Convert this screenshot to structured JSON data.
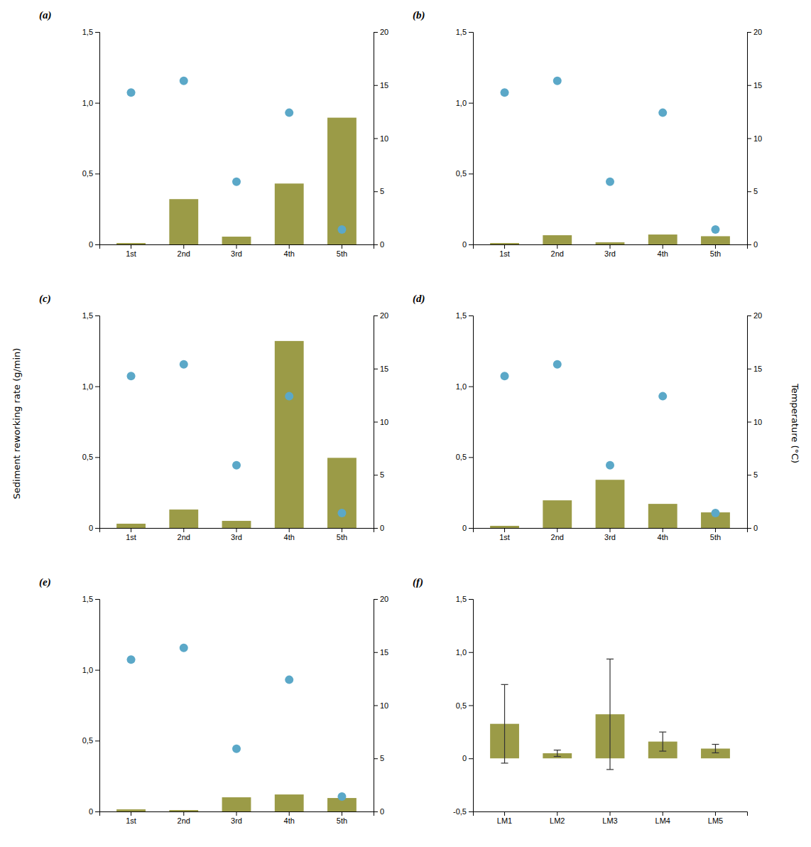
{
  "chart_data": [
    {
      "type": "bar",
      "title": "(a)",
      "categories": [
        "1st",
        "2nd",
        "3rd",
        "4th",
        "5th"
      ],
      "series": [
        {
          "type": "bar",
          "color": "#9B9B47",
          "values": [
            0.01,
            0.32,
            0.055,
            0.43,
            0.895
          ]
        },
        {
          "type": "scatter",
          "color": "#5BA8C8",
          "axis": "y2",
          "values": [
            14.3,
            15.4,
            5.9,
            12.4,
            1.4
          ]
        }
      ],
      "ylim": [
        0,
        1.5
      ],
      "yticks": [
        0,
        {
          "value": 0.5,
          "label": "0,5"
        },
        {
          "value": 1.0,
          "label": "1,0"
        },
        {
          "value": 1.5,
          "label": "1,5"
        }
      ],
      "y2lim": [
        0,
        20
      ],
      "y2ticks": [
        0,
        5,
        10,
        15,
        20
      ],
      "ylabel": "Sediment reworking rate (g/min)",
      "y2label": "Temperature (°C)"
    },
    {
      "type": "bar",
      "title": "(b)",
      "categories": [
        "1st",
        "2nd",
        "3rd",
        "4th",
        "5th"
      ],
      "series": [
        {
          "type": "bar",
          "color": "#9B9B47",
          "values": [
            0.01,
            0.065,
            0.015,
            0.07,
            0.058
          ]
        },
        {
          "type": "scatter",
          "color": "#5BA8C8",
          "axis": "y2",
          "values": [
            14.3,
            15.4,
            5.9,
            12.4,
            1.4
          ]
        }
      ],
      "ylim": [
        0,
        1.5
      ],
      "yticks": [
        0,
        {
          "value": 0.5,
          "label": "0,5"
        },
        {
          "value": 1.0,
          "label": "1,0"
        },
        {
          "value": 1.5,
          "label": "1,5"
        }
      ],
      "y2lim": [
        0,
        20
      ],
      "y2ticks": [
        0,
        5,
        10,
        15,
        20
      ]
    },
    {
      "type": "bar",
      "title": "(c)",
      "categories": [
        "1st",
        "2nd",
        "3rd",
        "4th",
        "5th"
      ],
      "series": [
        {
          "type": "bar",
          "color": "#9B9B47",
          "values": [
            0.03,
            0.13,
            0.05,
            1.32,
            0.495
          ]
        },
        {
          "type": "scatter",
          "color": "#5BA8C8",
          "axis": "y2",
          "values": [
            14.3,
            15.4,
            5.9,
            12.4,
            1.4
          ]
        }
      ],
      "ylim": [
        0,
        1.5
      ],
      "yticks": [
        0,
        {
          "value": 0.5,
          "label": "0,5"
        },
        {
          "value": 1.0,
          "label": "1,0"
        },
        {
          "value": 1.5,
          "label": "1,5"
        }
      ],
      "y2lim": [
        0,
        20
      ],
      "y2ticks": [
        0,
        5,
        10,
        15,
        20
      ]
    },
    {
      "type": "bar",
      "title": "(d)",
      "categories": [
        "1st",
        "2nd",
        "3rd",
        "4th",
        "5th"
      ],
      "series": [
        {
          "type": "bar",
          "color": "#9B9B47",
          "values": [
            0.015,
            0.195,
            0.34,
            0.17,
            0.11
          ]
        },
        {
          "type": "scatter",
          "color": "#5BA8C8",
          "axis": "y2",
          "values": [
            14.3,
            15.4,
            5.9,
            12.4,
            1.4
          ]
        }
      ],
      "ylim": [
        0,
        1.5
      ],
      "yticks": [
        0,
        {
          "value": 0.5,
          "label": "0,5"
        },
        {
          "value": 1.0,
          "label": "1,0"
        },
        {
          "value": 1.5,
          "label": "1,5"
        }
      ],
      "y2lim": [
        0,
        20
      ],
      "y2ticks": [
        0,
        5,
        10,
        15,
        20
      ]
    },
    {
      "type": "bar",
      "title": "(e)",
      "categories": [
        "1st",
        "2nd",
        "3rd",
        "4th",
        "5th"
      ],
      "series": [
        {
          "type": "bar",
          "color": "#9B9B47",
          "values": [
            0.015,
            0.01,
            0.1,
            0.12,
            0.095
          ]
        },
        {
          "type": "scatter",
          "color": "#5BA8C8",
          "axis": "y2",
          "values": [
            14.3,
            15.4,
            5.9,
            12.4,
            1.4
          ]
        }
      ],
      "ylim": [
        0,
        1.5
      ],
      "yticks": [
        0,
        {
          "value": 0.5,
          "label": "0,5"
        },
        {
          "value": 1.0,
          "label": "1,0"
        },
        {
          "value": 1.5,
          "label": "1,5"
        }
      ],
      "y2lim": [
        0,
        20
      ],
      "y2ticks": [
        0,
        5,
        10,
        15,
        20
      ]
    },
    {
      "type": "bar",
      "title": "(f)",
      "categories": [
        "LM1",
        "LM2",
        "LM3",
        "LM4",
        "LM5"
      ],
      "values": [
        0.325,
        0.048,
        0.415,
        0.158,
        0.092
      ],
      "errors": [
        0.37,
        0.03,
        0.52,
        0.09,
        0.04
      ],
      "color": "#9B9B47",
      "ylim": [
        -0.5,
        1.5
      ],
      "yticks": [
        {
          "value": -0.5,
          "label": "-0,5"
        },
        0,
        {
          "value": 0.5,
          "label": "0,5"
        },
        {
          "value": 1.0,
          "label": "1,0"
        },
        {
          "value": 1.5,
          "label": "1,5"
        }
      ]
    }
  ]
}
